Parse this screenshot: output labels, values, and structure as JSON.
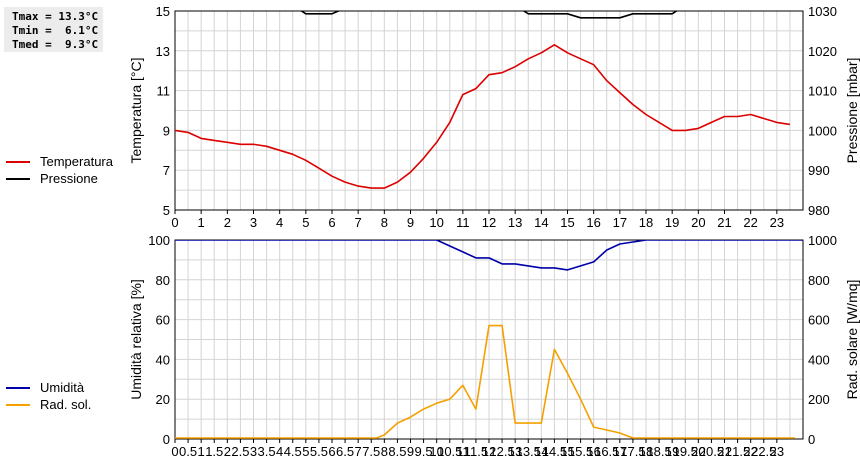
{
  "stats": {
    "tmax": "Tmax = 13.3°C",
    "tmin": "Tmin =  6.1°C",
    "tmed": "Tmed =  9.3°C"
  },
  "legend_top": [
    {
      "label": "Temperatura",
      "color": "#dd0000"
    },
    {
      "label": "Pressione",
      "color": "#000000"
    }
  ],
  "legend_bottom": [
    {
      "label": "Umidità",
      "color": "#0000aa"
    },
    {
      "label": "Rad. sol.",
      "color": "#f5a000"
    }
  ],
  "chart_data": [
    {
      "type": "line",
      "xlabel": "",
      "ylabel": "Temperatura [°C]",
      "y2label": "Pressione [mbar]",
      "xlim": [
        0,
        24
      ],
      "ylim": [
        5,
        15
      ],
      "y2lim": [
        980,
        1030
      ],
      "xticks": [
        0,
        1,
        2,
        3,
        4,
        5,
        6,
        7,
        8,
        9,
        10,
        11,
        12,
        13,
        14,
        15,
        16,
        17,
        18,
        19,
        20,
        21,
        22,
        23
      ],
      "yticks": [
        5,
        7,
        9,
        11,
        13,
        15
      ],
      "y2ticks": [
        980,
        990,
        1000,
        1010,
        1020,
        1030
      ],
      "grid": true,
      "series": [
        {
          "name": "Temperatura",
          "color": "#dd0000",
          "axis": "left",
          "x": [
            0,
            0.5,
            1,
            1.5,
            2,
            2.5,
            3,
            3.5,
            4,
            4.5,
            5,
            5.5,
            6,
            6.5,
            7,
            7.5,
            8,
            8.5,
            9,
            9.5,
            10,
            10.5,
            11,
            11.5,
            12,
            12.5,
            13,
            13.5,
            14,
            14.5,
            15,
            15.5,
            16,
            16.5,
            17,
            17.5,
            18,
            18.5,
            19,
            19.5,
            20,
            20.5,
            21,
            21.5,
            22,
            22.5,
            23,
            23.5
          ],
          "values": [
            9.0,
            8.9,
            8.6,
            8.5,
            8.4,
            8.3,
            8.3,
            8.2,
            8.0,
            7.8,
            7.5,
            7.1,
            6.7,
            6.4,
            6.2,
            6.1,
            6.1,
            6.4,
            6.9,
            7.6,
            8.4,
            9.4,
            10.8,
            11.1,
            11.8,
            11.9,
            12.2,
            12.6,
            12.9,
            13.3,
            12.9,
            12.6,
            12.3,
            11.5,
            10.9,
            10.3,
            9.8,
            9.4,
            9.0,
            9.0,
            9.1,
            9.4,
            9.7,
            9.7,
            9.8,
            9.6,
            9.4,
            9.3
          ]
        },
        {
          "name": "Pressione",
          "color": "#000000",
          "axis": "right",
          "x": [
            4.6,
            5,
            6,
            6.6,
            13.1,
            13.5,
            15,
            15.5,
            17,
            17.5,
            19,
            19.4
          ],
          "values": [
            1031.0,
            1029.3,
            1029.3,
            1031.0,
            1031.0,
            1029.3,
            1029.3,
            1028.3,
            1028.3,
            1029.3,
            1029.3,
            1031.0
          ]
        }
      ]
    },
    {
      "type": "line",
      "xlabel": "",
      "ylabel": "Umidità relativa [%]",
      "y2label": "Rad. solare [W/mq]",
      "xlim": [
        0,
        24
      ],
      "ylim": [
        0,
        100
      ],
      "y2lim": [
        0,
        1000
      ],
      "xticks": [
        0,
        0.5,
        1,
        1.5,
        2,
        2.5,
        3,
        3.5,
        4,
        4.5,
        5,
        5.5,
        6,
        6.5,
        7,
        7.5,
        8,
        8.5,
        9,
        9.5,
        10,
        10.5,
        11,
        11.5,
        12,
        12.5,
        13,
        13.5,
        14,
        14.5,
        15,
        15.5,
        16,
        16.5,
        17,
        17.5,
        18,
        18.5,
        19,
        19.5,
        20,
        20.5,
        21,
        21.5,
        22,
        22.5,
        23
      ],
      "yticks": [
        0,
        20,
        40,
        60,
        80,
        100
      ],
      "y2ticks": [
        0,
        200,
        400,
        600,
        800,
        1000
      ],
      "grid": true,
      "series": [
        {
          "name": "Umidità",
          "color": "#0000aa",
          "axis": "left",
          "x": [
            0,
            10,
            10.5,
            11,
            11.5,
            12,
            12.5,
            13,
            13.5,
            14,
            14.5,
            15,
            15.5,
            16,
            16.5,
            17,
            17.5,
            18,
            24
          ],
          "values": [
            100,
            100,
            97,
            94,
            91,
            91,
            88,
            88,
            87,
            86,
            86,
            85,
            87,
            89,
            95,
            98,
            99,
            100,
            100
          ]
        },
        {
          "name": "Rad. sol.",
          "color": "#f5a000",
          "axis": "right",
          "x": [
            0,
            7.7,
            8,
            8.5,
            9,
            9.5,
            10,
            10.5,
            11,
            11.5,
            12,
            12.5,
            13,
            13.5,
            14,
            14.5,
            15,
            15.5,
            16,
            16.5,
            17,
            17.5,
            18,
            23.7
          ],
          "values": [
            5,
            5,
            20,
            80,
            110,
            150,
            180,
            200,
            270,
            150,
            570,
            570,
            80,
            80,
            80,
            450,
            330,
            200,
            60,
            45,
            30,
            5,
            5,
            5
          ]
        }
      ]
    }
  ]
}
